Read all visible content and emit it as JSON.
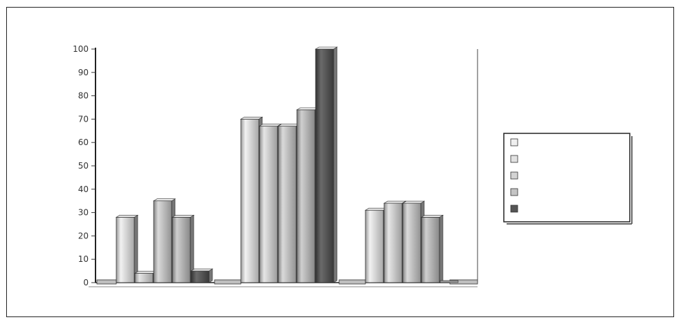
{
  "chart_data": {
    "type": "bar",
    "style": "3d-grayscale",
    "categories": [
      "",
      "",
      ""
    ],
    "series": [
      {
        "values": [
          28,
          70,
          31
        ]
      },
      {
        "values": [
          4,
          67,
          34
        ]
      },
      {
        "values": [
          35,
          67,
          34
        ]
      },
      {
        "values": [
          28,
          74,
          28
        ]
      },
      {
        "values": [
          5,
          100,
          0
        ]
      }
    ],
    "y_ticks": [
      0,
      10,
      20,
      30,
      40,
      50,
      60,
      70,
      80,
      90,
      100
    ],
    "ylim": [
      0,
      100
    ],
    "grid": false,
    "legend_position": "right",
    "colors": [
      "#efefef",
      "#e1e1e1",
      "#d3d3d3",
      "#c4c4c4",
      "#555555"
    ]
  }
}
